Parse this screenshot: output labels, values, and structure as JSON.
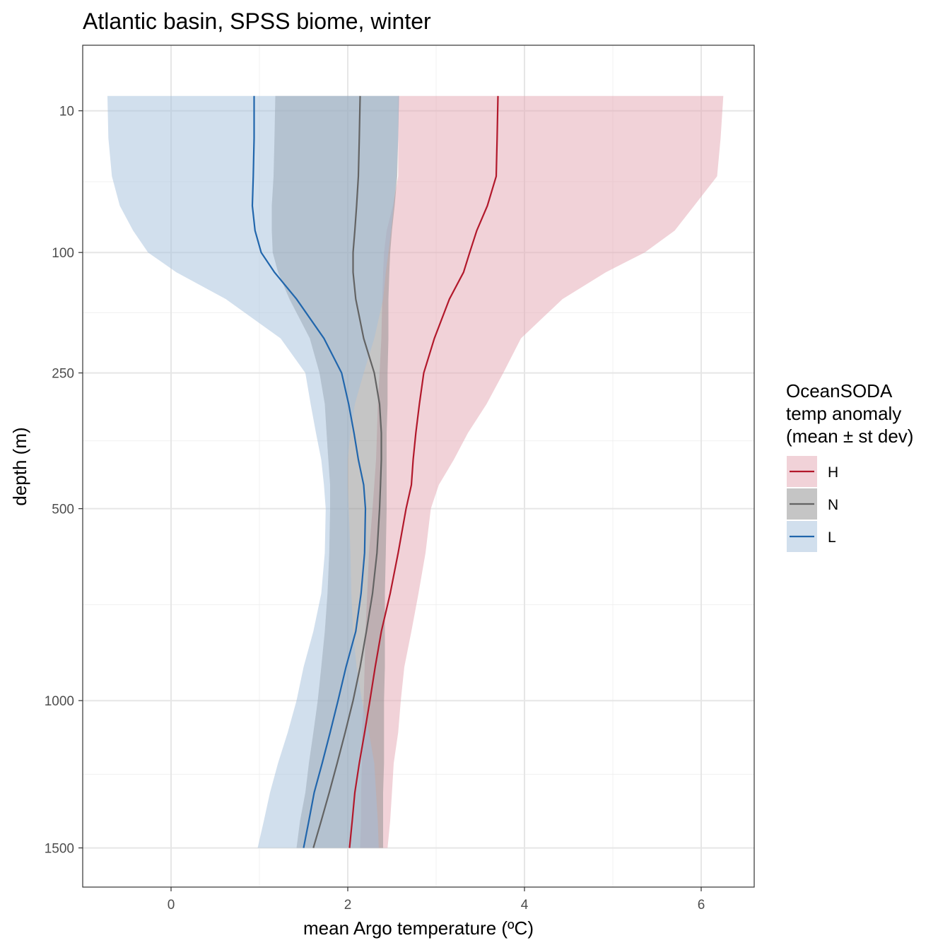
{
  "chart_data": {
    "type": "line",
    "title": "Atlantic basin, SPSS biome, winter",
    "xlabel": "mean Argo temperature (ºC)",
    "ylabel": "depth (m)",
    "xlim": [
      -1.0,
      6.6
    ],
    "y_scale": "sqrt",
    "y_reversed": true,
    "ylim": [
      0,
      1650
    ],
    "x_ticks": [
      0,
      2,
      4,
      6
    ],
    "y_ticks": [
      10,
      100,
      250,
      500,
      1000,
      1500
    ],
    "grid": true,
    "legend": {
      "title_lines": [
        "OceanSODA",
        "temp anomaly",
        "(mean ± st dev)"
      ],
      "placement": "right"
    },
    "depth": [
      6,
      20,
      40,
      60,
      80,
      100,
      120,
      150,
      200,
      250,
      300,
      350,
      400,
      450,
      500,
      600,
      700,
      800,
      900,
      1000,
      1100,
      1200,
      1300,
      1400,
      1500
    ],
    "series": [
      {
        "name": "H",
        "color": "#b2182b",
        "fill": "#e3a6b2",
        "mean": [
          3.7,
          3.69,
          3.68,
          3.58,
          3.46,
          3.38,
          3.31,
          3.15,
          2.98,
          2.86,
          2.81,
          2.77,
          2.74,
          2.72,
          2.66,
          2.57,
          2.48,
          2.38,
          2.31,
          2.25,
          2.19,
          2.13,
          2.08,
          2.05,
          2.02
        ],
        "lower": [
          2.57,
          2.57,
          2.57,
          2.51,
          2.44,
          2.41,
          2.4,
          2.39,
          2.38,
          2.36,
          2.34,
          2.33,
          2.32,
          2.3,
          2.28,
          2.24,
          2.22,
          2.2,
          2.19,
          2.18,
          2.16,
          2.16,
          2.15,
          2.15,
          2.14
        ],
        "upper": [
          6.25,
          6.22,
          6.18,
          5.92,
          5.7,
          5.36,
          4.92,
          4.43,
          3.96,
          3.76,
          3.57,
          3.36,
          3.2,
          3.03,
          2.94,
          2.88,
          2.8,
          2.72,
          2.64,
          2.6,
          2.57,
          2.52,
          2.5,
          2.48,
          2.45
        ]
      },
      {
        "name": "N",
        "color": "#636363",
        "fill": "#8c8c8c",
        "mean": [
          2.14,
          2.13,
          2.12,
          2.1,
          2.08,
          2.06,
          2.06,
          2.09,
          2.18,
          2.3,
          2.36,
          2.38,
          2.38,
          2.37,
          2.36,
          2.33,
          2.28,
          2.21,
          2.14,
          2.06,
          1.97,
          1.88,
          1.79,
          1.7,
          1.61
        ],
        "lower": [
          1.18,
          1.17,
          1.16,
          1.14,
          1.14,
          1.15,
          1.21,
          1.34,
          1.57,
          1.68,
          1.74,
          1.76,
          1.78,
          1.8,
          1.8,
          1.79,
          1.77,
          1.74,
          1.7,
          1.66,
          1.61,
          1.56,
          1.52,
          1.46,
          1.42
        ],
        "upper": [
          2.58,
          2.57,
          2.56,
          2.53,
          2.5,
          2.48,
          2.47,
          2.46,
          2.46,
          2.45,
          2.45,
          2.44,
          2.44,
          2.44,
          2.44,
          2.43,
          2.42,
          2.42,
          2.42,
          2.41,
          2.41,
          2.41,
          2.4,
          2.4,
          2.4
        ]
      },
      {
        "name": "L",
        "color": "#2166ac",
        "fill": "#a4bfdb",
        "mean": [
          0.94,
          0.94,
          0.93,
          0.92,
          0.95,
          1.02,
          1.17,
          1.42,
          1.73,
          1.93,
          2.01,
          2.07,
          2.12,
          2.18,
          2.2,
          2.19,
          2.15,
          2.09,
          1.98,
          1.89,
          1.8,
          1.71,
          1.62,
          1.56,
          1.5
        ],
        "lower": [
          -0.72,
          -0.71,
          -0.67,
          -0.58,
          -0.43,
          -0.26,
          0.06,
          0.62,
          1.24,
          1.52,
          1.58,
          1.64,
          1.7,
          1.73,
          1.75,
          1.74,
          1.7,
          1.61,
          1.5,
          1.42,
          1.32,
          1.21,
          1.12,
          1.05,
          0.98
        ],
        "upper": [
          2.58,
          2.57,
          2.55,
          2.52,
          2.49,
          2.46,
          2.43,
          2.4,
          2.3,
          2.18,
          2.08,
          2.03,
          2.0,
          2.0,
          2.01,
          2.03,
          2.04,
          2.06,
          2.1,
          2.16,
          2.24,
          2.3,
          2.32,
          2.34,
          2.35
        ]
      }
    ]
  }
}
